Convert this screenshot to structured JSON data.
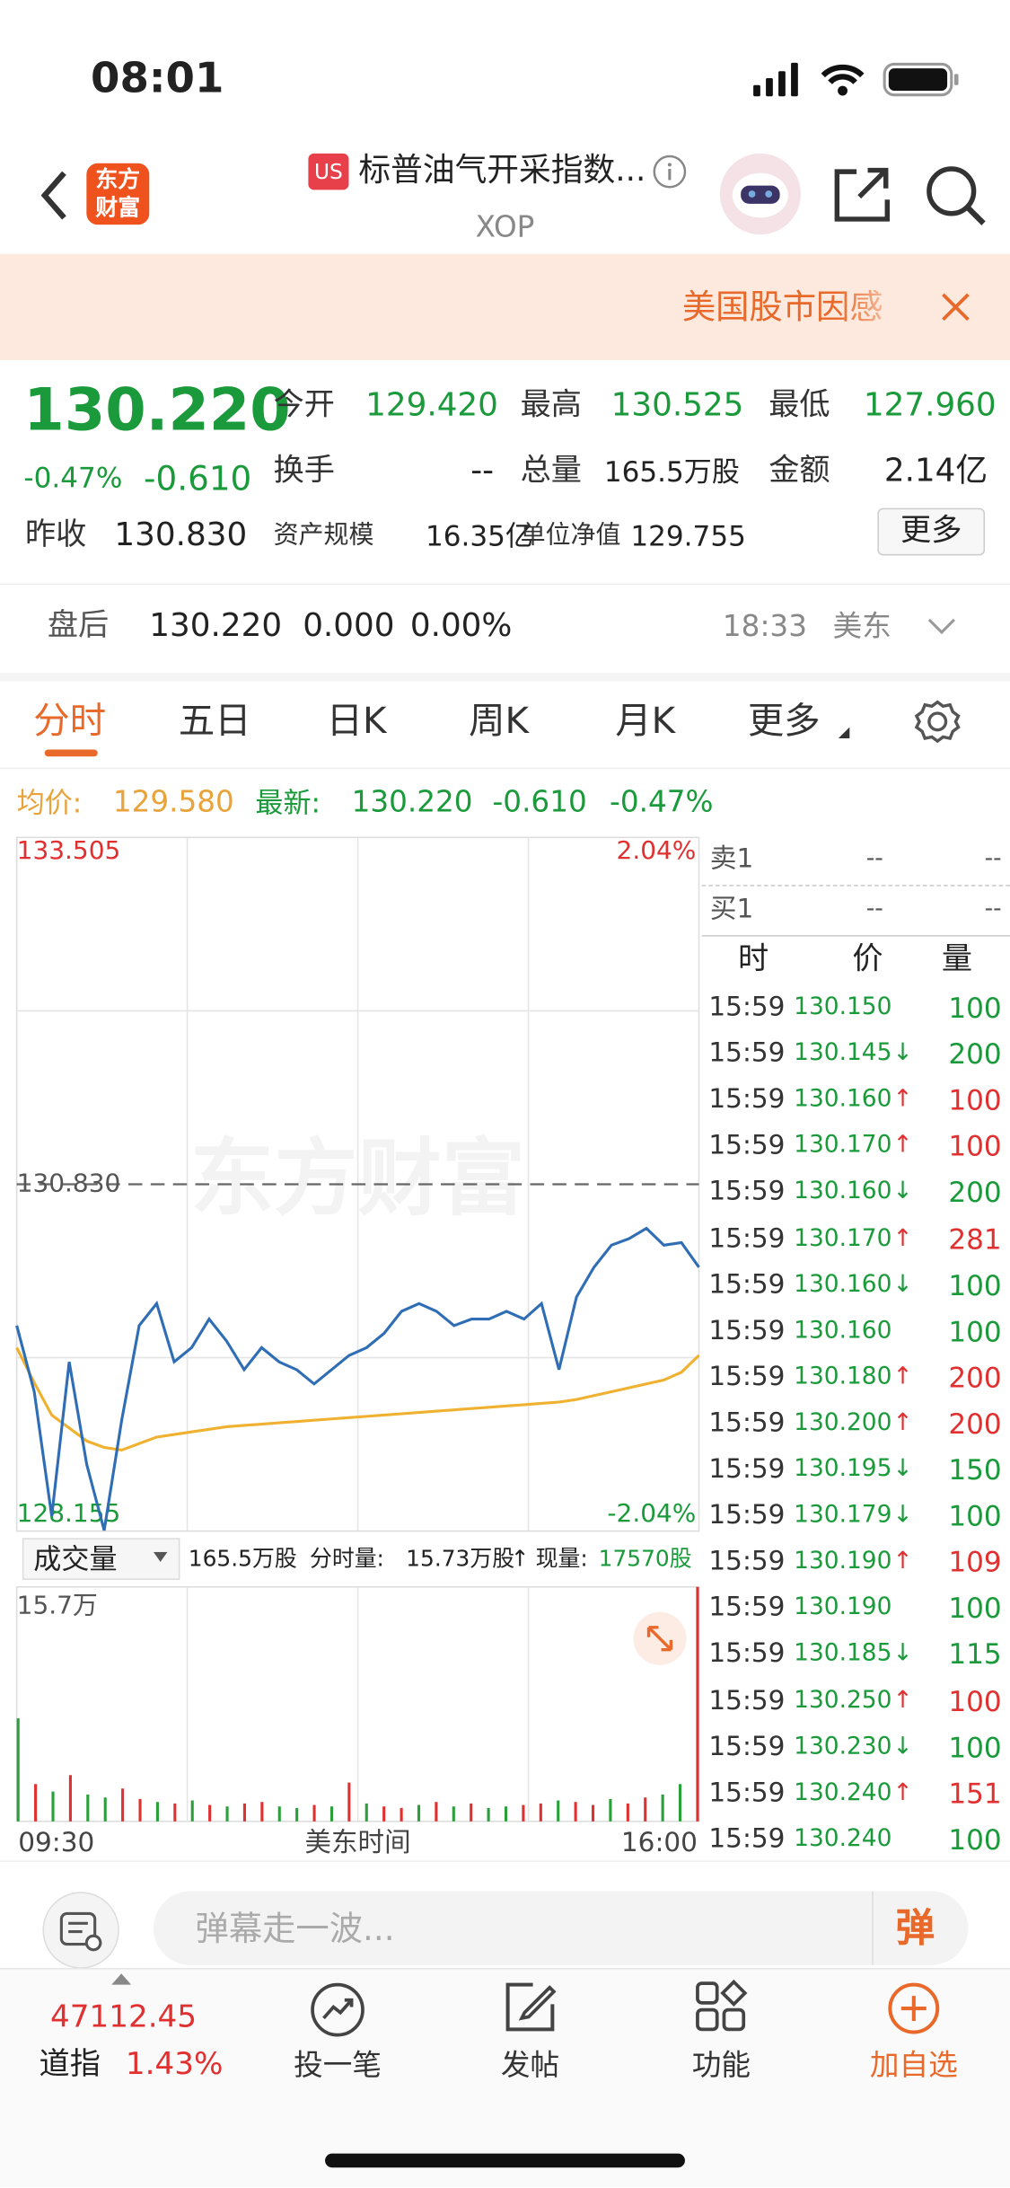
{
  "status_bar": {
    "time": "08:01"
  },
  "header": {
    "logo_line1": "东方",
    "logo_line2": "财富",
    "market": "US",
    "title": "标普油气开采指数...",
    "code": "XOP"
  },
  "banner": {
    "text": "美国股市因感"
  },
  "quote": {
    "price": "130.220",
    "change_pct": "-0.47%",
    "change": "-0.610",
    "fields": [
      {
        "label": "今开",
        "value": "129.420"
      },
      {
        "label": "最高",
        "value": "130.525"
      },
      {
        "label": "最低",
        "value": "127.960"
      },
      {
        "label": "换手",
        "value": "--"
      },
      {
        "label": "总量",
        "value": "165.5万股"
      },
      {
        "label": "金额",
        "value": "2.14亿"
      },
      {
        "label": "昨收",
        "value": "130.830"
      },
      {
        "label": "资产规模",
        "value": "16.35亿"
      },
      {
        "label": "单位净值",
        "value": "129.755"
      }
    ],
    "more": "更多"
  },
  "after_hours": {
    "label": "盘后",
    "price": "130.220",
    "change": "0.000",
    "change_pct": "0.00%",
    "time": "18:33",
    "zone": "美东"
  },
  "tabs": [
    "分时",
    "五日",
    "日K",
    "周K",
    "月K",
    "更多"
  ],
  "summary": {
    "avg_label": "均价:",
    "avg": "129.580",
    "latest_label": "最新:",
    "latest": "130.220",
    "change": "-0.610",
    "change_pct": "-0.47%"
  },
  "chart_data": [
    {
      "type": "line",
      "watermark": "东方财富",
      "x": [
        0,
        10,
        20,
        30,
        40,
        50,
        60,
        70,
        80,
        90,
        100,
        110,
        120,
        130,
        140,
        150,
        160,
        170,
        180,
        190,
        200,
        210,
        220,
        230,
        240,
        250,
        260,
        270,
        280,
        290,
        300,
        310,
        320,
        330,
        340,
        350,
        360,
        370,
        380,
        390
      ],
      "xlim": [
        0,
        390
      ],
      "ylim": [
        128.155,
        133.505
      ],
      "yticks": [
        133.505,
        {
          "value": 130.83,
          "label": "130.830"
        },
        128.155
      ],
      "y2lim": [
        -2.04,
        2.04
      ],
      "y2ticks": [
        {
          "value": 2.04,
          "label": "2.04%"
        },
        {
          "value": -2.04,
          "label": "-2.04%"
        }
      ],
      "series": [
        {
          "color": "#2f6db5",
          "values": [
            129.74,
            129.23,
            128.27,
            129.46,
            128.67,
            128.16,
            129.01,
            129.74,
            129.91,
            129.46,
            129.57,
            129.79,
            129.62,
            129.4,
            129.57,
            129.46,
            129.4,
            129.29,
            129.4,
            129.51,
            129.57,
            129.68,
            129.85,
            129.91,
            129.85,
            129.74,
            129.79,
            129.79,
            129.85,
            129.79,
            129.91,
            129.4,
            129.96,
            130.19,
            130.36,
            130.41,
            130.49,
            130.36,
            130.38,
            130.19
          ]
        },
        {
          "color": "#f0b030",
          "values": [
            129.57,
            129.3,
            129.05,
            128.95,
            128.85,
            128.8,
            128.78,
            128.83,
            128.88,
            128.9,
            128.92,
            128.94,
            128.96,
            128.97,
            128.98,
            128.99,
            129.0,
            129.01,
            129.02,
            129.03,
            129.04,
            129.05,
            129.06,
            129.07,
            129.08,
            129.09,
            129.1,
            129.11,
            129.12,
            129.13,
            129.14,
            129.15,
            129.17,
            129.2,
            129.23,
            129.26,
            129.29,
            129.32,
            129.38,
            129.51
          ]
        }
      ]
    },
    {
      "type": "bar",
      "x": [
        0,
        10,
        20,
        30,
        40,
        50,
        60,
        70,
        80,
        90,
        100,
        110,
        120,
        130,
        140,
        150,
        160,
        170,
        180,
        190,
        200,
        210,
        220,
        230,
        240,
        250,
        260,
        270,
        280,
        290,
        300,
        310,
        320,
        330,
        340,
        350,
        360,
        370,
        380,
        390
      ],
      "xlim": [
        0,
        390
      ],
      "ylim": [
        0,
        15.7
      ],
      "yticks": [
        {
          "value": 15.7,
          "label": "15.7万"
        }
      ],
      "xticks": [
        {
          "value": 0,
          "label": "09:30"
        },
        {
          "value": 390,
          "label": "16:00"
        }
      ],
      "xlabel": "美东时间",
      "values": [
        6.9,
        2.5,
        2.0,
        3.1,
        1.8,
        1.6,
        2.2,
        1.5,
        1.3,
        1.2,
        1.4,
        1.1,
        1.0,
        1.2,
        1.3,
        1.0,
        0.9,
        1.1,
        1.0,
        2.6,
        1.2,
        1.0,
        0.9,
        1.1,
        1.3,
        1.0,
        1.2,
        0.9,
        1.0,
        1.1,
        1.2,
        1.4,
        1.3,
        1.1,
        1.5,
        1.2,
        1.6,
        1.8,
        2.5,
        15.7
      ],
      "colors": [
        "#2aa03a",
        "#e03030",
        "#2aa03a",
        "#e03030",
        "#2aa03a",
        "#2aa03a",
        "#e03030",
        "#e03030",
        "#2aa03a",
        "#e03030",
        "#2aa03a",
        "#e03030",
        "#2aa03a",
        "#e03030",
        "#e03030",
        "#2aa03a",
        "#2aa03a",
        "#e03030",
        "#2aa03a",
        "#e03030",
        "#2aa03a",
        "#e03030",
        "#e03030",
        "#2aa03a",
        "#e03030",
        "#2aa03a",
        "#e03030",
        "#2aa03a",
        "#2aa03a",
        "#e03030",
        "#e03030",
        "#2aa03a",
        "#e03030",
        "#e03030",
        "#2aa03a",
        "#e03030",
        "#e03030",
        "#2aa03a",
        "#2aa03a",
        "#e03030"
      ]
    }
  ],
  "volume_header": {
    "selector": "成交量",
    "total": "165.5万股",
    "period_label": "分时量:",
    "period": "15.73万股",
    "arrow": "↑",
    "current_label": "现量:",
    "current": "17570股"
  },
  "trades": {
    "ask_label": "卖1",
    "ask_price": "--",
    "ask_volume": "--",
    "bid_label": "买1",
    "bid_price": "--",
    "bid_volume": "--",
    "columns": [
      "时",
      "价",
      "量"
    ],
    "rows": [
      {
        "time": "15:59",
        "price": "130.150",
        "volume": 100
      },
      {
        "time": "15:59",
        "price": "130.145",
        "arrow": "↓",
        "volume": 200
      },
      {
        "time": "15:59",
        "price": "130.160",
        "arrow": "↑",
        "volume": 100
      },
      {
        "time": "15:59",
        "price": "130.170",
        "arrow": "↑",
        "volume": 100
      },
      {
        "time": "15:59",
        "price": "130.160",
        "arrow": "↓",
        "volume": 200
      },
      {
        "time": "15:59",
        "price": "130.170",
        "arrow": "↑",
        "volume": 281
      },
      {
        "time": "15:59",
        "price": "130.160",
        "arrow": "↓",
        "volume": 100
      },
      {
        "time": "15:59",
        "price": "130.160",
        "volume": 100
      },
      {
        "time": "15:59",
        "price": "130.180",
        "arrow": "↑",
        "volume": 200
      },
      {
        "time": "15:59",
        "price": "130.200",
        "arrow": "↑",
        "volume": 200
      },
      {
        "time": "15:59",
        "price": "130.195",
        "arrow": "↓",
        "volume": 150
      },
      {
        "time": "15:59",
        "price": "130.179",
        "arrow": "↓",
        "volume": 100
      },
      {
        "time": "15:59",
        "price": "130.190",
        "arrow": "↑",
        "volume": 109
      },
      {
        "time": "15:59",
        "price": "130.190",
        "volume": 100
      },
      {
        "time": "15:59",
        "price": "130.185",
        "arrow": "↓",
        "volume": 115
      },
      {
        "time": "15:59",
        "price": "130.250",
        "arrow": "↑",
        "volume": 100
      },
      {
        "time": "15:59",
        "price": "130.230",
        "arrow": "↓",
        "volume": 100
      },
      {
        "time": "15:59",
        "price": "130.240",
        "arrow": "↑",
        "volume": 151
      },
      {
        "time": "15:59",
        "price": "130.240",
        "volume": 100
      }
    ]
  },
  "comment": {
    "placeholder": "弹幕走一波...",
    "button": "弹"
  },
  "footer": {
    "index_value": "47112.45",
    "index_name": "道指",
    "index_change": "1.43%",
    "actions": [
      "投一笔",
      "发帖",
      "功能",
      "加自选"
    ]
  }
}
